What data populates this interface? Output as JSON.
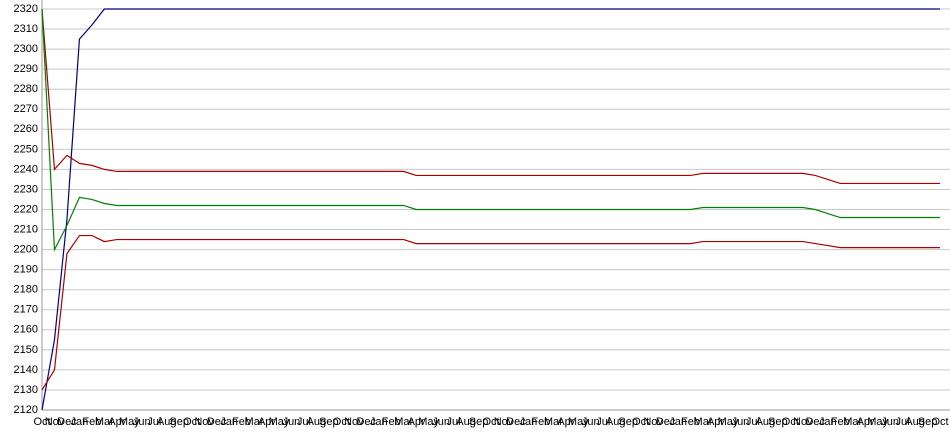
{
  "chart_data": {
    "type": "line",
    "categories": [
      "Oct",
      "Nov",
      "Dec",
      "Jan",
      "Feb",
      "Mar",
      "Apr",
      "May",
      "Jun",
      "Jul",
      "Aug",
      "Sep",
      "Oct",
      "Nov",
      "Dec",
      "Jan",
      "Feb",
      "Mar",
      "Apr",
      "May",
      "Jun",
      "Jul",
      "Aug",
      "Sep",
      "Oct",
      "Nov",
      "Dec",
      "Jan",
      "Feb",
      "Mar",
      "Apr",
      "May",
      "Jun",
      "Jul",
      "Aug",
      "Sep",
      "Oct",
      "Nov",
      "Dec",
      "Jan",
      "Feb",
      "Mar",
      "Apr",
      "May",
      "Jun",
      "Jul",
      "Aug",
      "Sep",
      "Oct",
      "Nov",
      "Dec",
      "Jan",
      "Feb",
      "Mar",
      "Apr",
      "May",
      "Jun",
      "Jul",
      "Aug",
      "Sep",
      "Oct",
      "Nov",
      "Dec",
      "Jan",
      "Feb",
      "Mar",
      "Apr",
      "May",
      "Jun",
      "Jul",
      "Aug",
      "Sep",
      "Oct"
    ],
    "series": [
      {
        "color": "#000080",
        "values": [
          2120,
          2155,
          2215,
          2305,
          2312,
          2320,
          2320,
          2320,
          2320,
          2320,
          2320,
          2320,
          2320,
          2320,
          2320,
          2320,
          2320,
          2320,
          2320,
          2320,
          2320,
          2320,
          2320,
          2320,
          2320,
          2320,
          2320,
          2320,
          2320,
          2320,
          2320,
          2320,
          2320,
          2320,
          2320,
          2320,
          2320,
          2320,
          2320,
          2320,
          2320,
          2320,
          2320,
          2320,
          2320,
          2320,
          2320,
          2320,
          2320,
          2320,
          2320,
          2320,
          2320,
          2320,
          2320,
          2320,
          2320,
          2320,
          2320,
          2320,
          2320,
          2320,
          2320,
          2320,
          2320,
          2320,
          2320,
          2320,
          2320,
          2320,
          2320,
          2320,
          2320
        ]
      },
      {
        "color": "#aa0000",
        "values": [
          2320,
          2240,
          2247,
          2243,
          2242,
          2240,
          2239,
          2239,
          2239,
          2239,
          2239,
          2239,
          2239,
          2239,
          2239,
          2239,
          2239,
          2239,
          2239,
          2239,
          2239,
          2239,
          2239,
          2239,
          2239,
          2239,
          2239,
          2239,
          2239,
          2239,
          2237,
          2237,
          2237,
          2237,
          2237,
          2237,
          2237,
          2237,
          2237,
          2237,
          2237,
          2237,
          2237,
          2237,
          2237,
          2237,
          2237,
          2237,
          2237,
          2237,
          2237,
          2237,
          2237,
          2238,
          2238,
          2238,
          2238,
          2238,
          2238,
          2238,
          2238,
          2238,
          2237,
          2235,
          2233,
          2233,
          2233,
          2233,
          2233,
          2233,
          2233,
          2233,
          2233
        ]
      },
      {
        "color": "#008000",
        "values": [
          2320,
          2200,
          2212,
          2226,
          2225,
          2223,
          2222,
          2222,
          2222,
          2222,
          2222,
          2222,
          2222,
          2222,
          2222,
          2222,
          2222,
          2222,
          2222,
          2222,
          2222,
          2222,
          2222,
          2222,
          2222,
          2222,
          2222,
          2222,
          2222,
          2222,
          2220,
          2220,
          2220,
          2220,
          2220,
          2220,
          2220,
          2220,
          2220,
          2220,
          2220,
          2220,
          2220,
          2220,
          2220,
          2220,
          2220,
          2220,
          2220,
          2220,
          2220,
          2220,
          2220,
          2221,
          2221,
          2221,
          2221,
          2221,
          2221,
          2221,
          2221,
          2221,
          2220,
          2218,
          2216,
          2216,
          2216,
          2216,
          2216,
          2216,
          2216,
          2216,
          2216
        ]
      },
      {
        "color": "#aa0000",
        "values": [
          2130,
          2140,
          2198,
          2207,
          2207,
          2204,
          2205,
          2205,
          2205,
          2205,
          2205,
          2205,
          2205,
          2205,
          2205,
          2205,
          2205,
          2205,
          2205,
          2205,
          2205,
          2205,
          2205,
          2205,
          2205,
          2205,
          2205,
          2205,
          2205,
          2205,
          2203,
          2203,
          2203,
          2203,
          2203,
          2203,
          2203,
          2203,
          2203,
          2203,
          2203,
          2203,
          2203,
          2203,
          2203,
          2203,
          2203,
          2203,
          2203,
          2203,
          2203,
          2203,
          2203,
          2204,
          2204,
          2204,
          2204,
          2204,
          2204,
          2204,
          2204,
          2204,
          2203,
          2202,
          2201,
          2201,
          2201,
          2201,
          2201,
          2201,
          2201,
          2201,
          2201
        ]
      }
    ],
    "ylim": [
      2120,
      2320
    ],
    "yticks": [
      2120,
      2130,
      2140,
      2150,
      2160,
      2170,
      2180,
      2190,
      2200,
      2210,
      2220,
      2230,
      2240,
      2250,
      2260,
      2270,
      2280,
      2290,
      2300,
      2310,
      2320
    ],
    "grid": true
  }
}
